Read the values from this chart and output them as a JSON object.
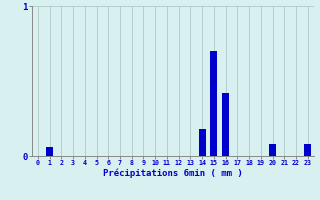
{
  "hours": [
    0,
    1,
    2,
    3,
    4,
    5,
    6,
    7,
    8,
    9,
    10,
    11,
    12,
    13,
    14,
    15,
    16,
    17,
    18,
    19,
    20,
    21,
    22,
    23
  ],
  "values": [
    0.0,
    0.06,
    0.0,
    0.0,
    0.0,
    0.0,
    0.0,
    0.0,
    0.0,
    0.0,
    0.0,
    0.0,
    0.0,
    0.0,
    0.18,
    0.7,
    0.42,
    0.0,
    0.0,
    0.0,
    0.08,
    0.0,
    0.0,
    0.08
  ],
  "bar_color": "#0000cc",
  "bg_color": "#d8f0f0",
  "grid_color": "#b0c8c8",
  "axis_color": "#888888",
  "text_color": "#0000cc",
  "xlabel": "Précipitations 6min ( mm )",
  "ylim": [
    0,
    1.0
  ],
  "yticks": [
    0,
    1
  ],
  "xlim": [
    -0.5,
    23.5
  ],
  "bar_width": 0.6
}
